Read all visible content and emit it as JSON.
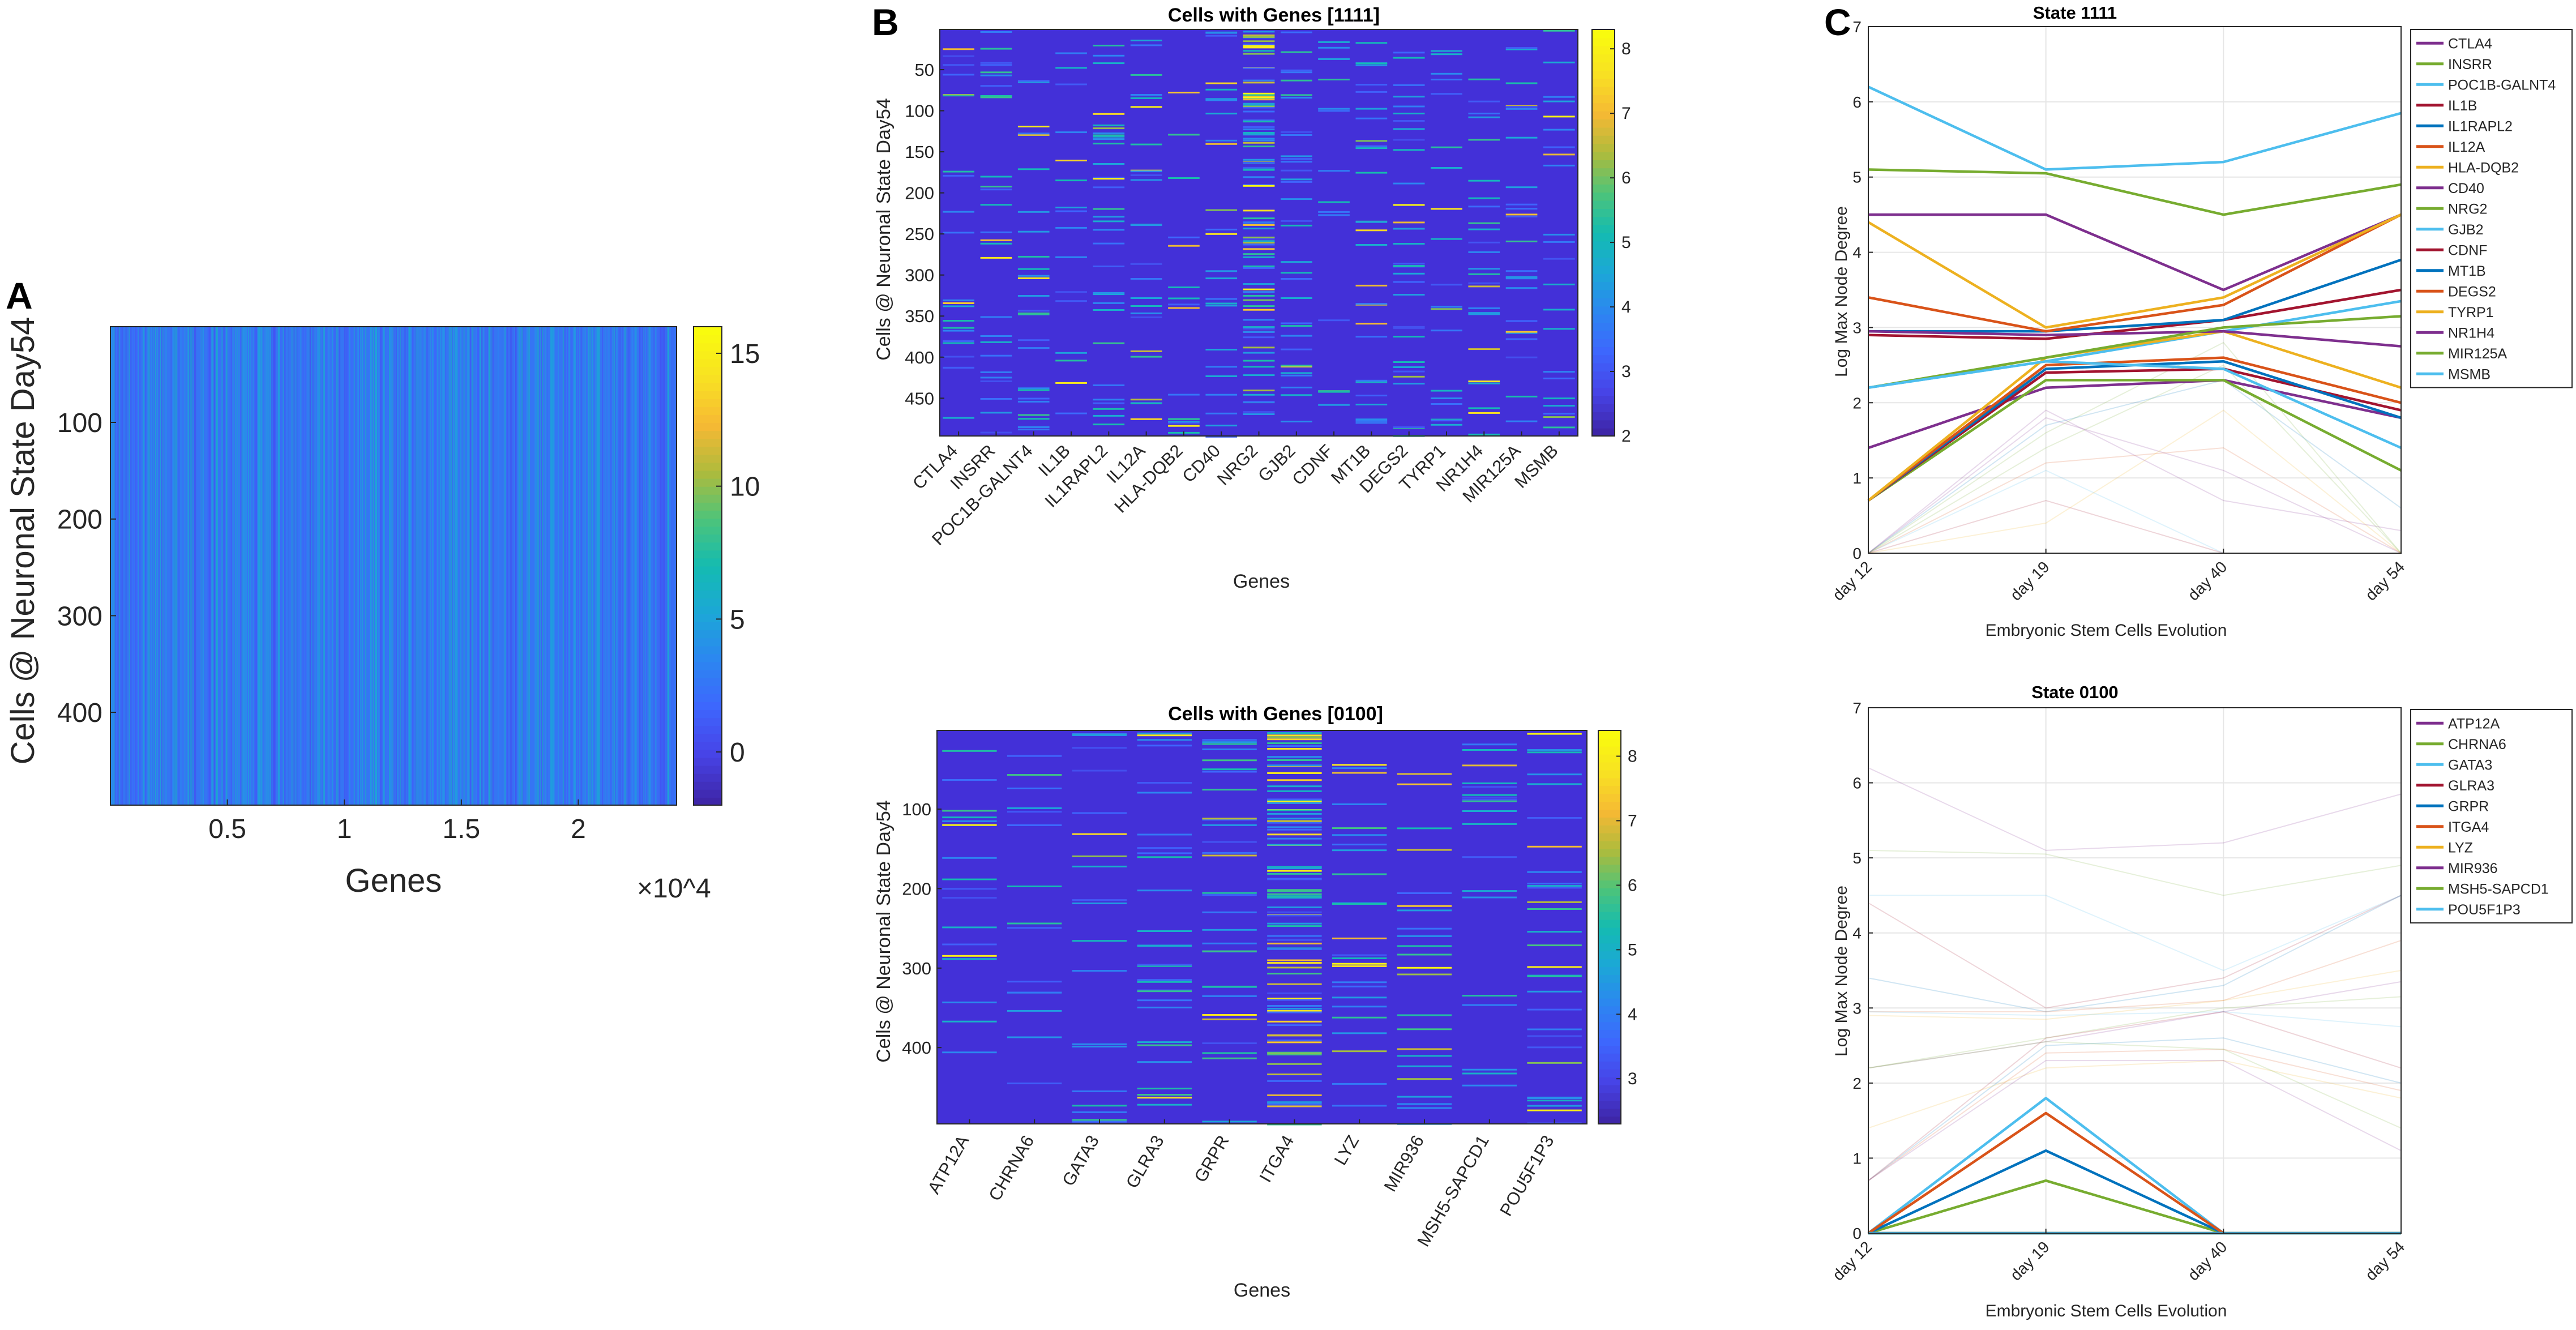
{
  "figure": {
    "panel_labels": [
      "A",
      "B",
      "C"
    ],
    "colormap": [
      "#3e26a8",
      "#4743e7",
      "#3e66fd",
      "#2c86f1",
      "#1ca7d7",
      "#14bbb1",
      "#4dc47a",
      "#aebb3c",
      "#f6b934",
      "#f8e123",
      "#f9fb0e"
    ]
  },
  "chart_data": [
    {
      "id": "A",
      "type": "heatmap",
      "title": "",
      "xlabel": "Genes",
      "ylabel": "Cells @ Neuronal State Day54",
      "x_multiplier": "×10^4",
      "xlim": [
        0,
        2.42
      ],
      "ylim": [
        1,
        496
      ],
      "xticks": [
        0.5,
        1,
        1.5,
        2
      ],
      "xtick_labels": [
        "0.5",
        "1",
        "1.5",
        "2"
      ],
      "yticks": [
        100,
        200,
        300,
        400
      ],
      "ytick_labels": [
        "100",
        "200",
        "300",
        "400"
      ],
      "color_range": [
        -2,
        16
      ],
      "colorbar_ticks": [
        0,
        5,
        10,
        15
      ],
      "colorbar_labels": [
        "0",
        "5",
        "10",
        "15"
      ],
      "background_value": 2.2
    },
    {
      "id": "B1",
      "type": "heatmap",
      "title": "Cells with Genes [1111]",
      "xlabel": "Genes",
      "ylabel": "Cells @ Neuronal State Day54",
      "genes": [
        "CTLA4",
        "INSRR",
        "POC1B-GALNT4",
        "IL1B",
        "IL1RAPL2",
        "IL12A",
        "HLA-DQB2",
        "CD40",
        "NRG2",
        "GJB2",
        "CDNF",
        "MT1B",
        "DEGS2",
        "TYRP1",
        "NR1H4",
        "MIR125A",
        "MSMB"
      ],
      "ylim": [
        1,
        496
      ],
      "yticks": [
        50,
        100,
        150,
        200,
        250,
        300,
        350,
        400,
        450
      ],
      "ytick_labels": [
        "50",
        "100",
        "150",
        "200",
        "250",
        "300",
        "350",
        "400",
        "450"
      ],
      "color_range": [
        2,
        8.3
      ],
      "colorbar_ticks": [
        2,
        3,
        4,
        5,
        6,
        7,
        8
      ],
      "colorbar_labels": [
        "2",
        "3",
        "4",
        "5",
        "6",
        "7",
        "8"
      ],
      "background_value": 2.3
    },
    {
      "id": "B2",
      "type": "heatmap",
      "title": "Cells with Genes [0100]",
      "xlabel": "Genes",
      "ylabel": "Cells @ Neuronal State Day54",
      "genes": [
        "ATP12A",
        "CHRNA6",
        "GATA3",
        "GLRA3",
        "GRPR",
        "ITGA4",
        "LYZ",
        "MIR936",
        "MSH5-SAPCD1",
        "POU5F1P3"
      ],
      "ylim": [
        1,
        496
      ],
      "yticks": [
        100,
        200,
        300,
        400
      ],
      "ytick_labels": [
        "100",
        "200",
        "300",
        "400"
      ],
      "color_range": [
        2.3,
        8.4
      ],
      "colorbar_ticks": [
        3,
        4,
        5,
        6,
        7,
        8
      ],
      "colorbar_labels": [
        "3",
        "4",
        "5",
        "6",
        "7",
        "8"
      ],
      "background_value": 2.5
    },
    {
      "id": "C1",
      "type": "line",
      "title": "State 1111",
      "xlabel": "Embryonic Stem Cells Evolution",
      "ylabel": "Log Max Node Degree",
      "categories": [
        "day 12",
        "day 19",
        "day 40",
        "day 54"
      ],
      "ylim": [
        0,
        7
      ],
      "yticks": [
        0,
        1,
        2,
        3,
        4,
        5,
        6,
        7
      ],
      "ytick_labels": [
        "0",
        "1",
        "2",
        "3",
        "4",
        "5",
        "6",
        "7"
      ],
      "grid": true,
      "legend_position": "top-right",
      "series": [
        {
          "name": "CTLA4",
          "color": "#7e2f8e",
          "values": [
            4.5,
            4.5,
            3.5,
            4.5
          ]
        },
        {
          "name": "INSRR",
          "color": "#77ac30",
          "values": [
            5.1,
            5.05,
            4.5,
            4.9
          ]
        },
        {
          "name": "POC1B-GALNT4",
          "color": "#4dbeee",
          "values": [
            6.2,
            5.1,
            5.2,
            5.85
          ]
        },
        {
          "name": "IL1B",
          "color": "#a2142f",
          "values": [
            2.9,
            2.85,
            3.1,
            3.5
          ]
        },
        {
          "name": "IL1RAPL2",
          "color": "#0072bd",
          "values": [
            2.95,
            2.95,
            3.1,
            3.9
          ]
        },
        {
          "name": "IL12A",
          "color": "#d95319",
          "values": [
            3.4,
            2.95,
            3.3,
            4.5
          ]
        },
        {
          "name": "HLA-DQB2",
          "color": "#edb120",
          "values": [
            4.4,
            3.0,
            3.4,
            4.5
          ]
        },
        {
          "name": "CD40",
          "color": "#7e2f8e",
          "values": [
            1.4,
            2.2,
            2.3,
            1.8
          ]
        },
        {
          "name": "NRG2",
          "color": "#77ac30",
          "values": [
            0.7,
            2.3,
            2.3,
            1.1
          ]
        },
        {
          "name": "GJB2",
          "color": "#4dbeee",
          "values": [
            2.2,
            2.55,
            2.95,
            3.35
          ]
        },
        {
          "name": "CDNF",
          "color": "#a2142f",
          "values": [
            0.7,
            2.4,
            2.45,
            1.9
          ]
        },
        {
          "name": "MT1B",
          "color": "#0072bd",
          "values": [
            0.7,
            2.45,
            2.55,
            1.8
          ]
        },
        {
          "name": "DEGS2",
          "color": "#d95319",
          "values": [
            0.7,
            2.5,
            2.6,
            2.0
          ]
        },
        {
          "name": "TYRP1",
          "color": "#edb120",
          "values": [
            0.7,
            2.6,
            2.95,
            2.2
          ]
        },
        {
          "name": "NR1H4",
          "color": "#7e2f8e",
          "values": [
            2.95,
            2.9,
            2.95,
            2.75
          ]
        },
        {
          "name": "MIR125A",
          "color": "#77ac30",
          "values": [
            2.2,
            2.6,
            3.0,
            3.15
          ]
        },
        {
          "name": "MSMB",
          "color": "#4dbeee",
          "values": [
            2.2,
            2.55,
            2.45,
            1.4
          ]
        }
      ],
      "faint_series": [
        [
          0,
          1.8,
          1.1,
          0
        ],
        [
          0,
          1.6,
          2.8,
          0
        ],
        [
          0,
          1.1,
          0,
          0
        ],
        [
          0,
          0.7,
          0,
          0
        ],
        [
          0,
          1.7,
          2.3,
          0.6
        ],
        [
          0,
          1.2,
          1.4,
          0
        ],
        [
          0,
          0.4,
          1.9,
          0
        ],
        [
          0,
          1.9,
          0.7,
          0.3
        ],
        [
          0,
          1.4,
          2.5,
          0
        ]
      ]
    },
    {
      "id": "C2",
      "type": "line",
      "title": "State 0100",
      "xlabel": "Embryonic Stem Cells Evolution",
      "ylabel": "Log Max Node Degree",
      "categories": [
        "day 12",
        "day 19",
        "day 40",
        "day 54"
      ],
      "ylim": [
        0,
        7
      ],
      "yticks": [
        0,
        1,
        2,
        3,
        4,
        5,
        6,
        7
      ],
      "ytick_labels": [
        "0",
        "1",
        "2",
        "3",
        "4",
        "5",
        "6",
        "7"
      ],
      "grid": true,
      "legend_position": "top-right",
      "series": [
        {
          "name": "ATP12A",
          "color": "#7e2f8e",
          "values": [
            0,
            0,
            0,
            0
          ]
        },
        {
          "name": "CHRNA6",
          "color": "#77ac30",
          "values": [
            0,
            0.7,
            0,
            0
          ]
        },
        {
          "name": "GATA3",
          "color": "#4dbeee",
          "values": [
            0,
            1.8,
            0,
            0
          ]
        },
        {
          "name": "GLRA3",
          "color": "#a2142f",
          "values": [
            0,
            0,
            0,
            0
          ]
        },
        {
          "name": "GRPR",
          "color": "#0072bd",
          "values": [
            0,
            1.1,
            0,
            0
          ]
        },
        {
          "name": "ITGA4",
          "color": "#d95319",
          "values": [
            0,
            1.6,
            0,
            0
          ]
        },
        {
          "name": "LYZ",
          "color": "#edb120",
          "values": [
            0,
            0,
            0,
            0
          ]
        },
        {
          "name": "MIR936",
          "color": "#7e2f8e",
          "values": [
            0,
            0,
            0,
            0
          ]
        },
        {
          "name": "MSH5-SAPCD1",
          "color": "#77ac30",
          "values": [
            0,
            0,
            0,
            0
          ]
        },
        {
          "name": "POU5F1P3",
          "color": "#4dbeee",
          "values": [
            0,
            0,
            0,
            0
          ]
        }
      ],
      "faint_series": [
        [
          6.2,
          5.1,
          5.2,
          5.85
        ],
        [
          5.1,
          5.05,
          4.5,
          4.9
        ],
        [
          4.5,
          4.5,
          3.5,
          4.5
        ],
        [
          4.4,
          3.0,
          3.4,
          4.5
        ],
        [
          3.4,
          2.95,
          3.3,
          4.5
        ],
        [
          2.95,
          2.95,
          3.1,
          3.9
        ],
        [
          2.9,
          2.85,
          3.1,
          3.5
        ],
        [
          2.2,
          2.55,
          2.95,
          3.35
        ],
        [
          2.2,
          2.6,
          3.0,
          3.15
        ],
        [
          2.95,
          2.9,
          2.95,
          2.75
        ],
        [
          0.7,
          2.6,
          2.95,
          2.2
        ],
        [
          0.7,
          2.5,
          2.6,
          2.0
        ],
        [
          0.7,
          2.4,
          2.45,
          1.9
        ],
        [
          1.4,
          2.2,
          2.3,
          1.8
        ],
        [
          0.7,
          2.3,
          2.3,
          1.1
        ],
        [
          2.2,
          2.55,
          2.45,
          1.4
        ]
      ]
    }
  ]
}
